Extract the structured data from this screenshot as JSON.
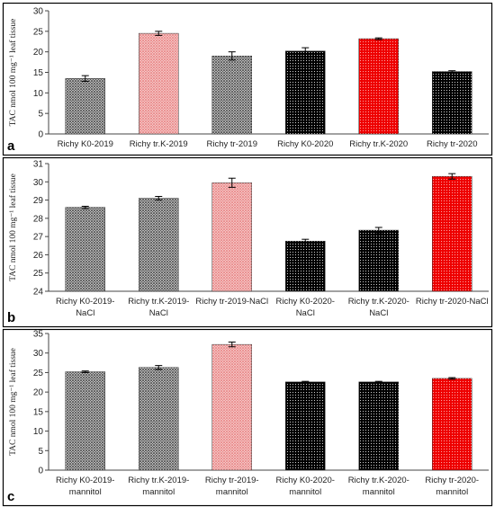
{
  "patterns": {
    "gray": "#555555",
    "pink": "#e98a8a",
    "black": "#000000",
    "red": "#ee0000"
  },
  "chart_data": [
    {
      "type": "bar",
      "panel_label": "a",
      "ylabel": "TAC nmol 100 mg⁻¹ leaf tissue",
      "ylim": [
        0,
        30
      ],
      "yticks": [
        0,
        5,
        10,
        15,
        20,
        25,
        30
      ],
      "categories": [
        [
          "Richy K0-2019"
        ],
        [
          "Richy tr.K-2019"
        ],
        [
          "Richy tr-2019"
        ],
        [
          "Richy K0-2020"
        ],
        [
          "Richy tr.K-2020"
        ],
        [
          "Richy tr-2020"
        ]
      ],
      "values": [
        13.5,
        24.5,
        19.0,
        20.2,
        23.2,
        15.2
      ],
      "errors": [
        0.7,
        0.5,
        1.0,
        0.8,
        0.2,
        0.2
      ],
      "fills": [
        "gray",
        "pink",
        "gray",
        "black",
        "red",
        "black"
      ]
    },
    {
      "type": "bar",
      "panel_label": "b",
      "ylabel": "TAC nmol 100 mg⁻¹ leaf tissue",
      "ylim": [
        24,
        31
      ],
      "yticks": [
        24,
        25,
        26,
        27,
        28,
        29,
        30,
        31
      ],
      "categories": [
        [
          "Richy K0-2019-",
          "NaCl"
        ],
        [
          "Richy tr.K-2019-",
          "NaCl"
        ],
        [
          "Richy tr-2019-NaCl"
        ],
        [
          "Richy K0-2020-",
          "NaCl"
        ],
        [
          "Richy tr.K-2020-",
          "NaCl"
        ],
        [
          "Richy tr-2020-NaCl"
        ]
      ],
      "values": [
        28.6,
        29.1,
        29.95,
        26.75,
        27.35,
        30.3
      ],
      "errors": [
        0.06,
        0.1,
        0.25,
        0.1,
        0.15,
        0.15
      ],
      "fills": [
        "gray",
        "gray",
        "pink",
        "black",
        "black",
        "red"
      ]
    },
    {
      "type": "bar",
      "panel_label": "c",
      "ylabel": "TAC nmol 100 mg⁻¹ leaf tissue",
      "ylim": [
        0,
        35
      ],
      "yticks": [
        0,
        5,
        10,
        15,
        20,
        25,
        30,
        35
      ],
      "categories": [
        [
          "Richy K0-2019-",
          "mannitol"
        ],
        [
          "Richy tr.K-2019-",
          "mannitol"
        ],
        [
          "Richy tr-2019-",
          "mannitol"
        ],
        [
          "Richy K0-2020-",
          "mannitol"
        ],
        [
          "Richy tr.K-2020-",
          "mannitol"
        ],
        [
          "Richy tr-2020-",
          "mannitol"
        ]
      ],
      "values": [
        25.2,
        26.3,
        32.2,
        22.6,
        22.6,
        23.5
      ],
      "errors": [
        0.2,
        0.5,
        0.6,
        0.15,
        0.15,
        0.2
      ],
      "fills": [
        "gray",
        "gray",
        "pink",
        "black",
        "black",
        "red"
      ]
    }
  ]
}
